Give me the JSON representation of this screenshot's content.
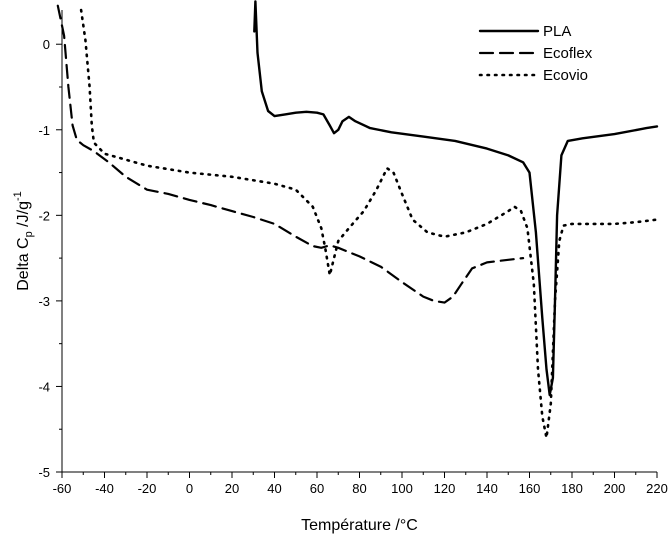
{
  "chart_data": {
    "type": "line",
    "xlabel": "Température /°C",
    "ylabel": "Delta C",
    "ylabel_sub": "p",
    "ylabel_unit": " /J/g",
    "ylabel_sup": "-1",
    "xlim": [
      -60,
      220
    ],
    "ylim": [
      -5,
      0.4
    ],
    "x_ticks": [
      -60,
      -40,
      -20,
      0,
      20,
      40,
      60,
      80,
      100,
      120,
      140,
      160,
      180,
      200,
      220
    ],
    "x_tick_labels": [
      "-60",
      "-40",
      "-20",
      "0",
      "20",
      "40",
      "60",
      "80",
      "100",
      "120",
      "140",
      "160",
      "180",
      "200",
      "220"
    ],
    "y_ticks": [
      0,
      -1,
      -2,
      -3,
      -4,
      -5
    ],
    "y_tick_labels": [
      "0",
      "-1",
      "-2",
      "-3",
      "-4",
      "-5"
    ],
    "grid": false,
    "legend_position": "top-right",
    "series": [
      {
        "name": "PLA",
        "style": "solid",
        "points": [
          [
            30.5,
            0.15
          ],
          [
            31,
            0.5
          ],
          [
            32,
            -0.1
          ],
          [
            34,
            -0.55
          ],
          [
            37,
            -0.78
          ],
          [
            40,
            -0.84
          ],
          [
            45,
            -0.82
          ],
          [
            50,
            -0.8
          ],
          [
            55,
            -0.79
          ],
          [
            60,
            -0.8
          ],
          [
            63,
            -0.82
          ],
          [
            66,
            -0.95
          ],
          [
            68,
            -1.04
          ],
          [
            70,
            -1.0
          ],
          [
            72,
            -0.9
          ],
          [
            75,
            -0.85
          ],
          [
            78,
            -0.9
          ],
          [
            85,
            -0.98
          ],
          [
            95,
            -1.03
          ],
          [
            110,
            -1.08
          ],
          [
            125,
            -1.13
          ],
          [
            140,
            -1.22
          ],
          [
            150,
            -1.3
          ],
          [
            157,
            -1.38
          ],
          [
            160,
            -1.5
          ],
          [
            163,
            -2.2
          ],
          [
            166,
            -3.2
          ],
          [
            168,
            -3.8
          ],
          [
            169.5,
            -4.1
          ],
          [
            171,
            -3.9
          ],
          [
            172,
            -3.0
          ],
          [
            173,
            -2.0
          ],
          [
            175,
            -1.3
          ],
          [
            178,
            -1.13
          ],
          [
            185,
            -1.1
          ],
          [
            200,
            -1.05
          ],
          [
            215,
            -0.98
          ],
          [
            220,
            -0.96
          ]
        ]
      },
      {
        "name": "Ecoflex",
        "style": "dashed",
        "points": [
          [
            -62,
            0.45
          ],
          [
            -59,
            0.1
          ],
          [
            -57,
            -0.5
          ],
          [
            -55,
            -0.95
          ],
          [
            -53,
            -1.12
          ],
          [
            -50,
            -1.18
          ],
          [
            -45,
            -1.25
          ],
          [
            -38,
            -1.38
          ],
          [
            -30,
            -1.55
          ],
          [
            -20,
            -1.7
          ],
          [
            -10,
            -1.75
          ],
          [
            0,
            -1.82
          ],
          [
            10,
            -1.88
          ],
          [
            20,
            -1.95
          ],
          [
            30,
            -2.02
          ],
          [
            40,
            -2.1
          ],
          [
            50,
            -2.25
          ],
          [
            58,
            -2.36
          ],
          [
            62,
            -2.38
          ],
          [
            66,
            -2.35
          ],
          [
            70,
            -2.38
          ],
          [
            80,
            -2.48
          ],
          [
            90,
            -2.6
          ],
          [
            100,
            -2.78
          ],
          [
            110,
            -2.95
          ],
          [
            115,
            -3.0
          ],
          [
            120,
            -3.02
          ],
          [
            124,
            -2.95
          ],
          [
            128,
            -2.8
          ],
          [
            133,
            -2.62
          ],
          [
            140,
            -2.55
          ],
          [
            150,
            -2.52
          ],
          [
            157,
            -2.5
          ]
        ]
      },
      {
        "name": "Ecovio",
        "style": "dotted",
        "points": [
          [
            -51,
            0.4
          ],
          [
            -49,
            0.05
          ],
          [
            -47,
            -0.5
          ],
          [
            -46,
            -0.95
          ],
          [
            -45,
            -1.15
          ],
          [
            -40,
            -1.28
          ],
          [
            -30,
            -1.35
          ],
          [
            -20,
            -1.42
          ],
          [
            0,
            -1.5
          ],
          [
            20,
            -1.55
          ],
          [
            40,
            -1.63
          ],
          [
            50,
            -1.7
          ],
          [
            58,
            -1.9
          ],
          [
            62,
            -2.15
          ],
          [
            64,
            -2.4
          ],
          [
            66,
            -2.7
          ],
          [
            68,
            -2.5
          ],
          [
            70,
            -2.3
          ],
          [
            75,
            -2.15
          ],
          [
            82,
            -1.95
          ],
          [
            88,
            -1.7
          ],
          [
            93,
            -1.45
          ],
          [
            96,
            -1.5
          ],
          [
            100,
            -1.75
          ],
          [
            105,
            -2.05
          ],
          [
            112,
            -2.2
          ],
          [
            120,
            -2.25
          ],
          [
            130,
            -2.2
          ],
          [
            140,
            -2.1
          ],
          [
            150,
            -1.95
          ],
          [
            153,
            -1.9
          ],
          [
            156,
            -1.95
          ],
          [
            159,
            -2.15
          ],
          [
            162,
            -2.8
          ],
          [
            164,
            -3.8
          ],
          [
            166,
            -4.35
          ],
          [
            168,
            -4.6
          ],
          [
            170,
            -4.2
          ],
          [
            172,
            -3.0
          ],
          [
            174,
            -2.3
          ],
          [
            176,
            -2.12
          ],
          [
            180,
            -2.1
          ],
          [
            190,
            -2.1
          ],
          [
            200,
            -2.1
          ],
          [
            210,
            -2.08
          ],
          [
            220,
            -2.05
          ]
        ]
      }
    ]
  }
}
